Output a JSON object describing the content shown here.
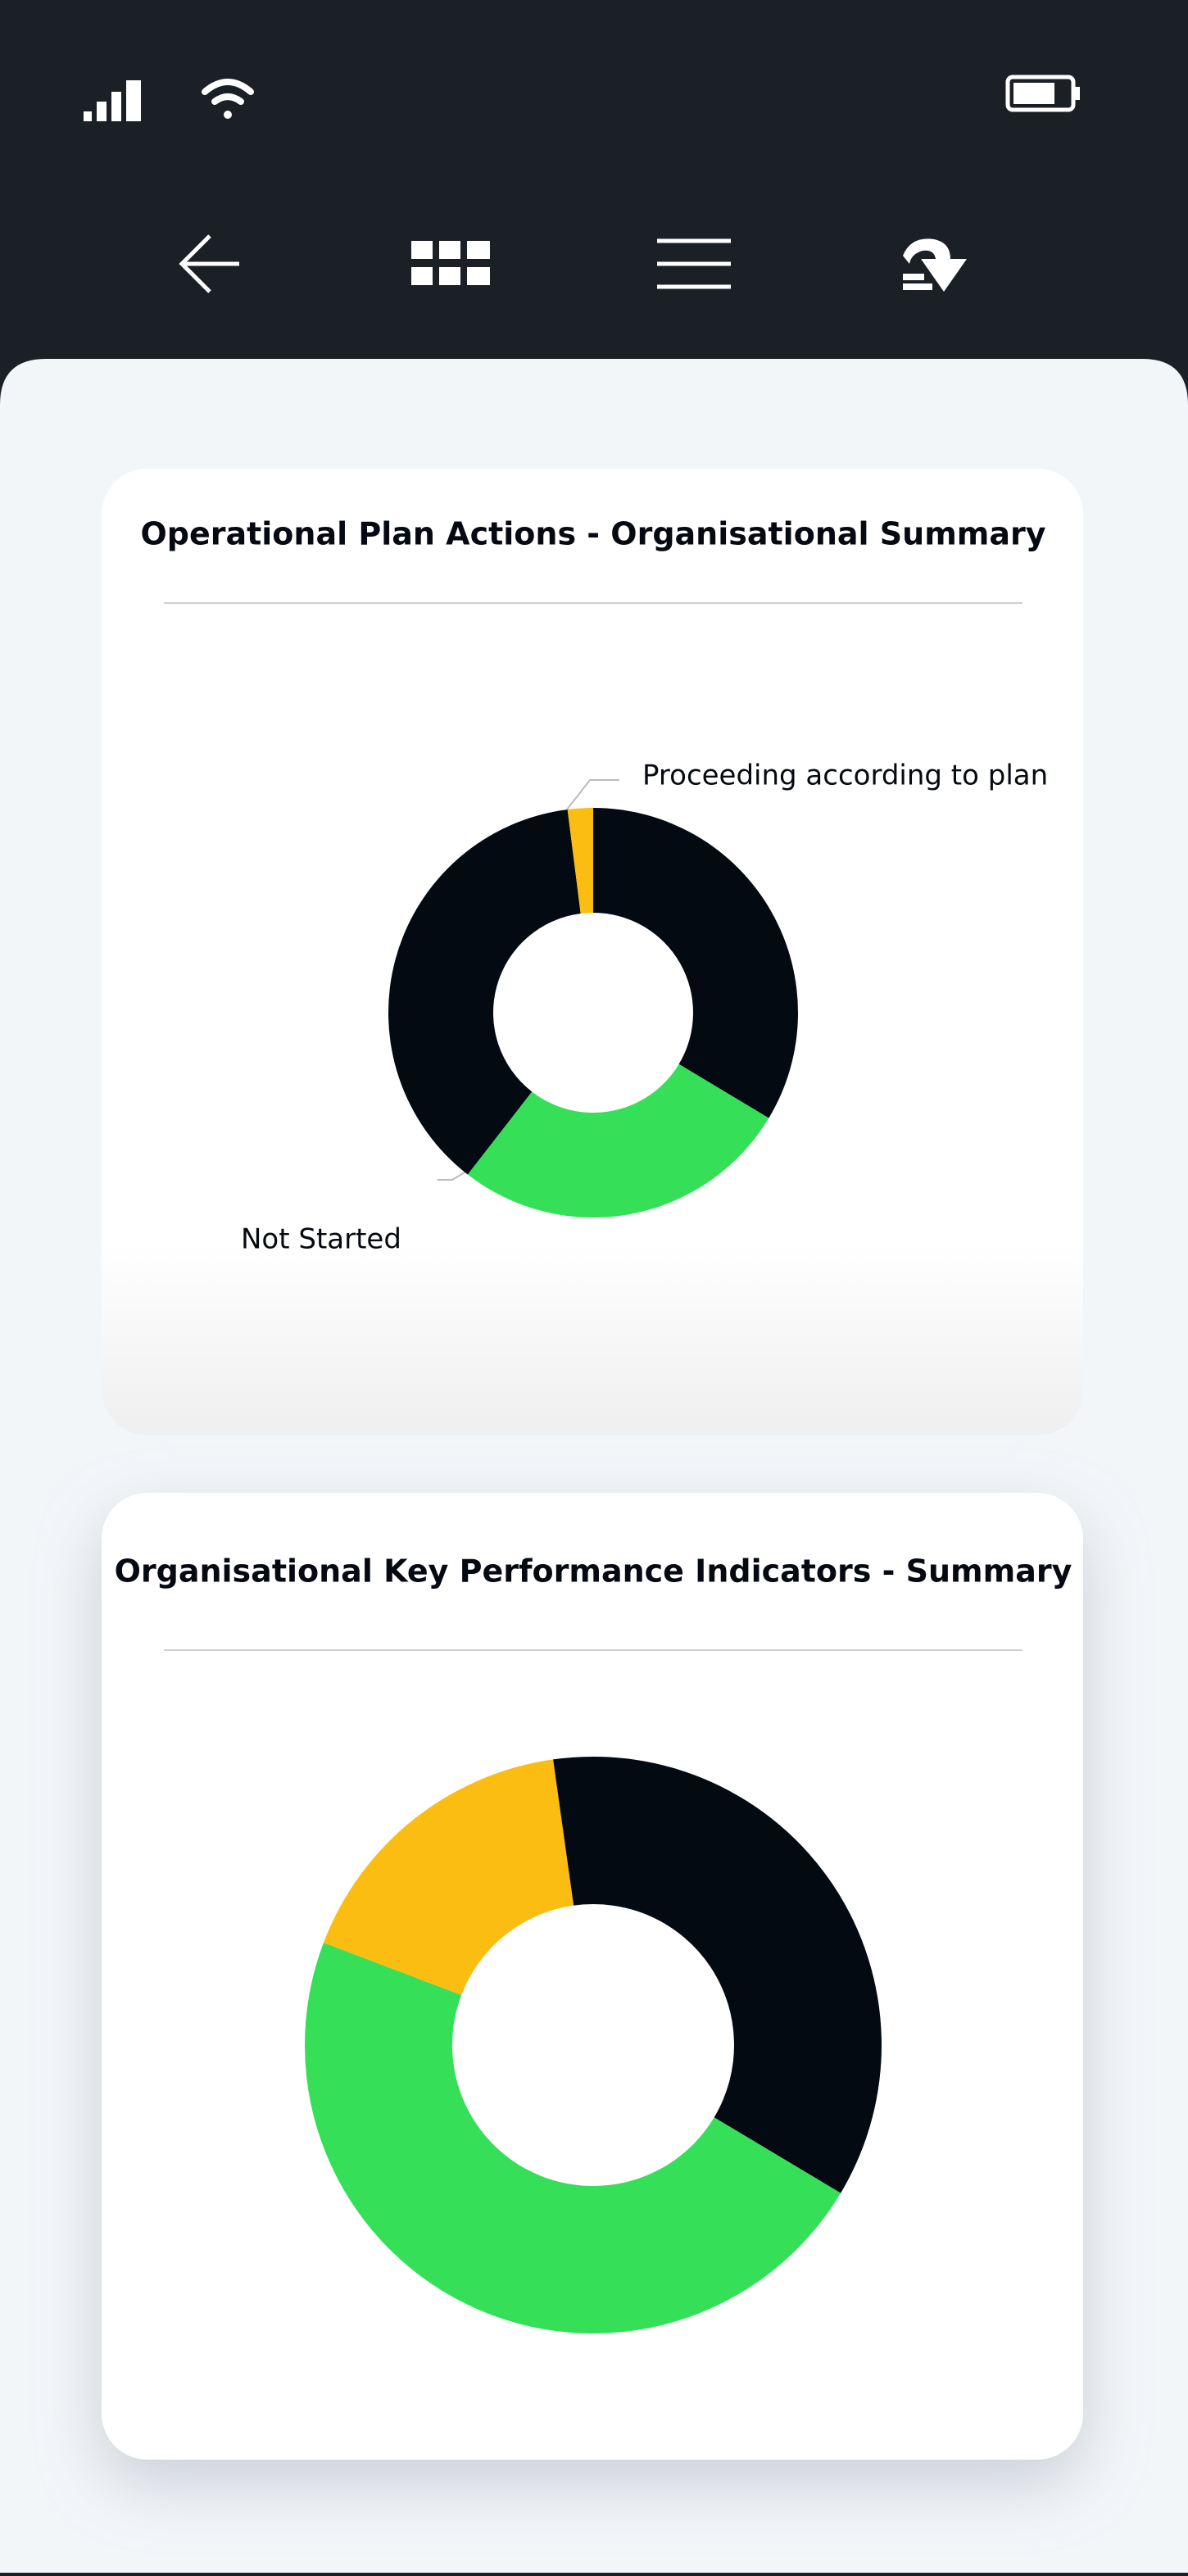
{
  "chart_data": [
    {
      "type": "donut",
      "title": "Operational Plan Actions - Organisational Summary",
      "categories": [
        null,
        null,
        "Not Started",
        "Proceeding according to plan"
      ],
      "values": [
        33.6,
        26.9,
        37.5,
        2.0
      ],
      "colors": [
        "#030a12",
        "#35e058",
        "#030a12",
        "#fcbd13"
      ]
    },
    {
      "type": "donut",
      "title": "Organisational Key Performance Indicators - Summary",
      "categories": [
        null,
        null,
        null
      ],
      "values": [
        35.8,
        47.2,
        17.0
      ],
      "colors": [
        "#030a12",
        "#35e058",
        "#fcbd13"
      ]
    }
  ]
}
